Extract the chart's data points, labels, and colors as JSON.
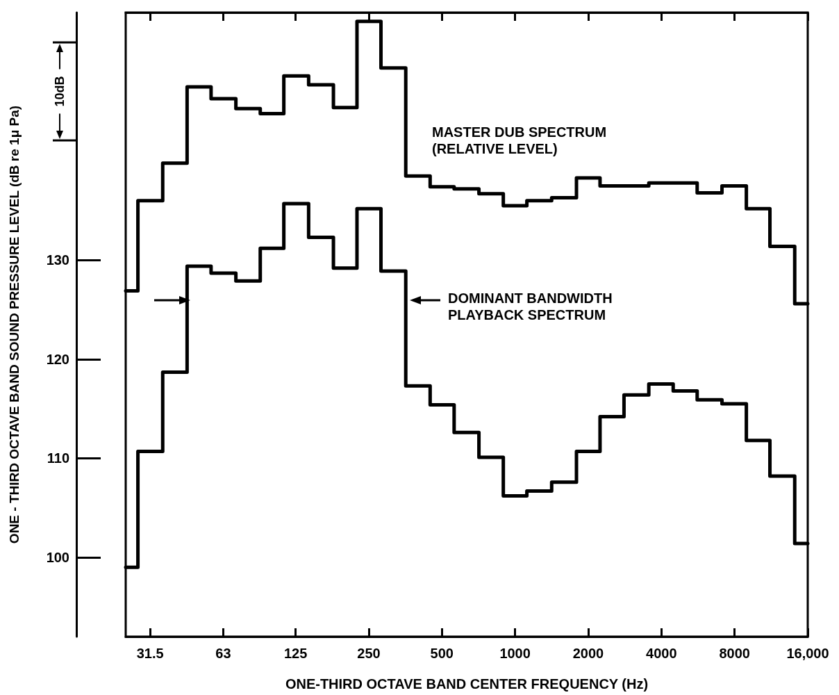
{
  "chart_data": {
    "type": "step",
    "xlabel": "ONE-THIRD OCTAVE BAND CENTER FREQUENCY (Hz)",
    "ylabel": "ONE - THIRD OCTAVE BAND SOUND PRESSURE LEVEL (dB re 1μ Pa)",
    "annotations": [
      "10dB"
    ],
    "x": [
      25,
      31.5,
      40,
      50,
      63,
      80,
      100,
      125,
      160,
      200,
      250,
      315,
      400,
      500,
      630,
      800,
      1000,
      1250,
      1600,
      2000,
      2500,
      3150,
      4000,
      5000,
      6300,
      8000,
      10000,
      12500,
      16000
    ],
    "series": [
      {
        "name": "MASTER DUB SPECTRUM (RELATIVE LEVEL)",
        "color": "#000000",
        "values": [
          126.9,
          136.0,
          139.8,
          147.5,
          146.3,
          145.3,
          144.8,
          148.6,
          147.7,
          145.4,
          154.1,
          149.4,
          138.5,
          137.4,
          137.2,
          136.7,
          135.5,
          136.0,
          136.3,
          138.3,
          137.5,
          137.5,
          137.8,
          137.8,
          136.8,
          137.5,
          135.2,
          131.4,
          125.6
        ]
      },
      {
        "name": "DOMINANT BANDWIDTH PLAYBACK SPECTRUM",
        "color": "#000000",
        "values": [
          99.0,
          110.7,
          118.7,
          129.4,
          128.7,
          127.9,
          131.2,
          135.7,
          132.3,
          129.2,
          135.2,
          128.9,
          117.3,
          115.4,
          112.6,
          110.1,
          106.2,
          106.7,
          107.6,
          110.7,
          114.2,
          116.4,
          117.5,
          116.8,
          115.9,
          115.5,
          111.8,
          108.2,
          101.4
        ]
      }
    ],
    "log": "x",
    "xlim": [
      25,
      16000
    ],
    "xticks": [
      31.5,
      63,
      125,
      250,
      500,
      1000,
      2000,
      4000,
      8000,
      {
        "value": 16000,
        "label": "16,000"
      }
    ],
    "ylim": [
      92,
      155
    ],
    "yticks": [
      100,
      110,
      120,
      130
    ]
  }
}
